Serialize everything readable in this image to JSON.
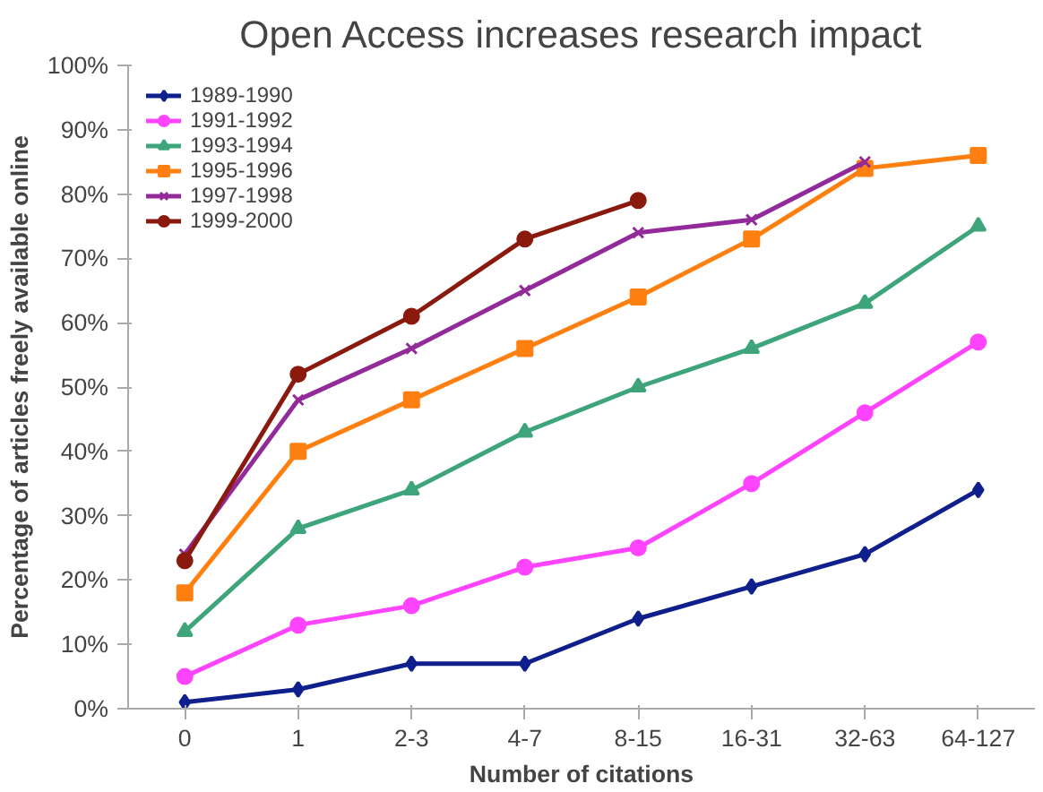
{
  "chart_data": {
    "type": "line",
    "title": "Open Access increases research impact",
    "xlabel": "Number of citations",
    "ylabel": "Percentage of articles freely available online",
    "categories": [
      "0",
      "1",
      "2-3",
      "4-7",
      "8-15",
      "16-31",
      "32-63",
      "64-127"
    ],
    "series": [
      {
        "name": "1989-1990",
        "color": "#0f1f8c",
        "marker": "diamond",
        "values": [
          1,
          3,
          7,
          7,
          14,
          19,
          24,
          34
        ]
      },
      {
        "name": "1991-1992",
        "color": "#ff44ff",
        "marker": "circle",
        "values": [
          5,
          13,
          16,
          22,
          25,
          35,
          46,
          57
        ]
      },
      {
        "name": "1993-1994",
        "color": "#3ea57a",
        "marker": "triangle",
        "values": [
          12,
          28,
          34,
          43,
          50,
          56,
          63,
          75
        ]
      },
      {
        "name": "1995-1996",
        "color": "#ff8010",
        "marker": "square",
        "values": [
          18,
          40,
          48,
          56,
          64,
          73,
          84,
          86
        ]
      },
      {
        "name": "1997-1998",
        "color": "#932a9a",
        "marker": "cross",
        "values": [
          24,
          48,
          56,
          65,
          74,
          76,
          85,
          null
        ]
      },
      {
        "name": "1999-2000",
        "color": "#8b1a0e",
        "marker": "circle",
        "values": [
          23,
          52,
          61,
          73,
          79,
          null,
          null,
          null
        ]
      }
    ],
    "ylim": [
      0,
      100
    ],
    "yticks": [
      {
        "value": 0,
        "label": "0%"
      },
      {
        "value": 10,
        "label": "10%"
      },
      {
        "value": 20,
        "label": "20%"
      },
      {
        "value": 30,
        "label": "30%"
      },
      {
        "value": 40,
        "label": "40%"
      },
      {
        "value": 50,
        "label": "50%"
      },
      {
        "value": 60,
        "label": "60%"
      },
      {
        "value": 70,
        "label": "70%"
      },
      {
        "value": 80,
        "label": "80%"
      },
      {
        "value": 90,
        "label": "90%"
      },
      {
        "value": 100,
        "label": "100%"
      }
    ],
    "grid": false,
    "legend": "top left"
  }
}
